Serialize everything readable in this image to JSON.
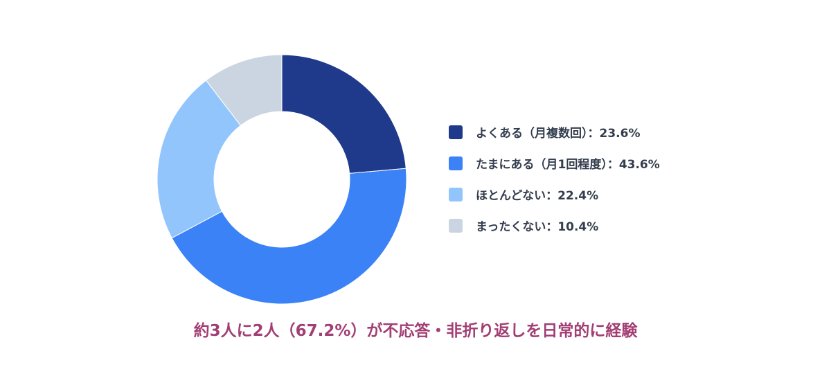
{
  "chart_data": {
    "type": "pie",
    "categories": [
      "よくある（月複数回）",
      "たまにある（月1回程度）",
      "ほとんどない",
      "まったくない"
    ],
    "values": [
      23.6,
      43.6,
      22.4,
      10.4
    ],
    "unit": "%",
    "colors": [
      "#1f3a8a",
      "#3b82f6",
      "#93c5fd",
      "#cbd5e1"
    ],
    "legend_position": "right",
    "legend": [
      {
        "label": "よくある（月複数回）：23.6%",
        "color": "#1f3a8a"
      },
      {
        "label": "たまにある（月1回程度）：43.6%",
        "color": "#3b82f6"
      },
      {
        "label": "ほとんどない：22.4%",
        "color": "#93c5fd"
      },
      {
        "label": "まったくない：10.4%",
        "color": "#cbd5e1"
      }
    ],
    "caption": "約3人に2人（67.2%）が不応答・非折り返しを日常的に経験"
  }
}
